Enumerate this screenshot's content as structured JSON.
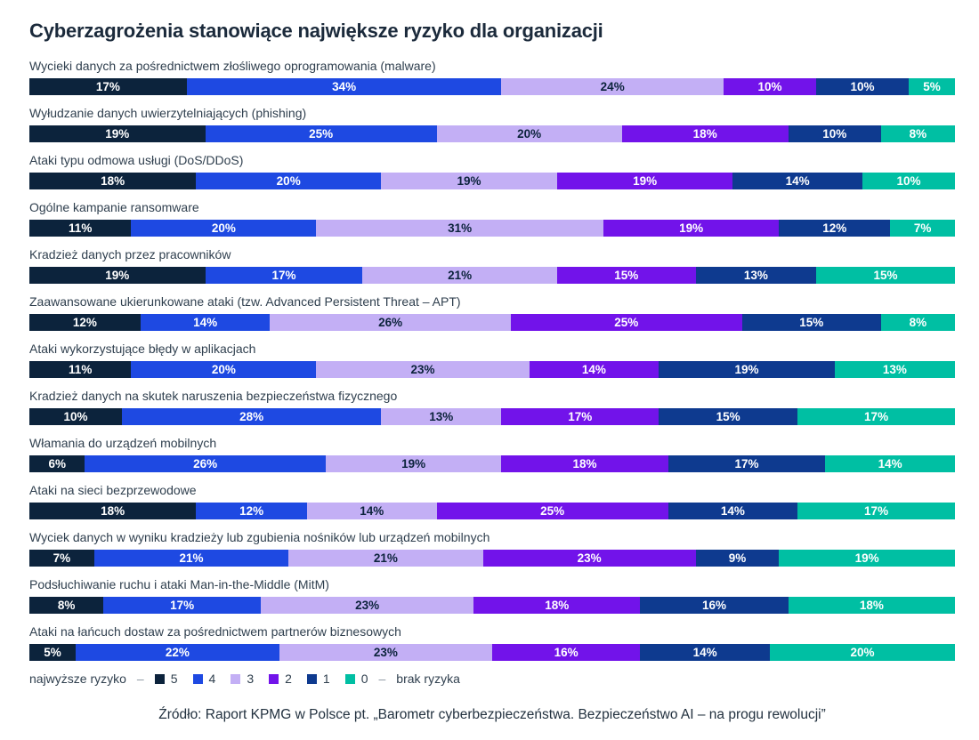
{
  "title": "Cyberzagrożenia stanowiące największe ryzyko dla organizacji",
  "chart_data": {
    "type": "bar",
    "orientation": "horizontal-stacked",
    "unit": "%",
    "xlim": [
      0,
      100
    ],
    "value_labels": "inside-center",
    "categories": [
      "Wycieki danych za pośrednictwem złośliwego oprogramowania (malware)",
      "Wyłudzanie danych uwierzytelniających (phishing)",
      "Ataki typu odmowa usługi (DoS/DDoS)",
      "Ogólne kampanie ransomware",
      "Kradzież danych przez pracowników",
      "Zaawansowane ukierunkowane ataki (tzw. Advanced Persistent Threat – APT)",
      "Ataki wykorzystujące błędy w aplikacjach",
      "Kradzież danych na skutek naruszenia bezpieczeństwa fizycznego",
      "Włamania do urządzeń mobilnych",
      "Ataki na sieci bezprzewodowe",
      "Wyciek danych w wyniku kradzieży lub zgubienia nośników lub urządzeń mobilnych",
      "Podsłuchiwanie ruchu i ataki Man-in-the-Middle (MitM)",
      "Ataki na łańcuch dostaw za pośrednictwem partnerów biznesowych"
    ],
    "series": [
      {
        "name": "5",
        "color": "#0C233C",
        "label_color": "#FFFFFF",
        "values": [
          17,
          19,
          18,
          11,
          19,
          12,
          11,
          10,
          6,
          18,
          7,
          8,
          5
        ]
      },
      {
        "name": "4",
        "color": "#1E49E2",
        "label_color": "#FFFFFF",
        "values": [
          34,
          25,
          20,
          20,
          17,
          14,
          20,
          28,
          26,
          12,
          21,
          17,
          22
        ]
      },
      {
        "name": "3",
        "color": "#C3AFF5",
        "label_color": "#0C233C",
        "values": [
          24,
          20,
          19,
          31,
          21,
          26,
          23,
          13,
          19,
          14,
          21,
          23,
          23
        ]
      },
      {
        "name": "2",
        "color": "#7213EA",
        "label_color": "#FFFFFF",
        "values": [
          10,
          18,
          19,
          19,
          15,
          25,
          14,
          17,
          18,
          25,
          23,
          18,
          16
        ]
      },
      {
        "name": "1",
        "color": "#0E3A8F",
        "label_color": "#FFFFFF",
        "values": [
          10,
          10,
          14,
          12,
          13,
          15,
          19,
          15,
          17,
          14,
          9,
          16,
          14
        ]
      },
      {
        "name": "0",
        "color": "#00BFA3",
        "label_color": "#FFFFFF",
        "values": [
          5,
          8,
          10,
          7,
          15,
          8,
          13,
          17,
          14,
          17,
          19,
          18,
          20
        ]
      }
    ]
  },
  "legend": {
    "prefix": "najwyższe ryzyko",
    "dash": "–",
    "items": [
      {
        "label": "5",
        "color": "#0C233C"
      },
      {
        "label": "4",
        "color": "#1E49E2"
      },
      {
        "label": "3",
        "color": "#C3AFF5"
      },
      {
        "label": "2",
        "color": "#7213EA"
      },
      {
        "label": "1",
        "color": "#0E3A8F"
      },
      {
        "label": "0",
        "color": "#00BFA3"
      }
    ],
    "suffix": "brak ryzyka"
  },
  "source": "Źródło: Raport KPMG w Polsce pt. „Barometr cyberbezpieczeństwa. Bezpieczeństwo AI – na progu rewolucji”"
}
